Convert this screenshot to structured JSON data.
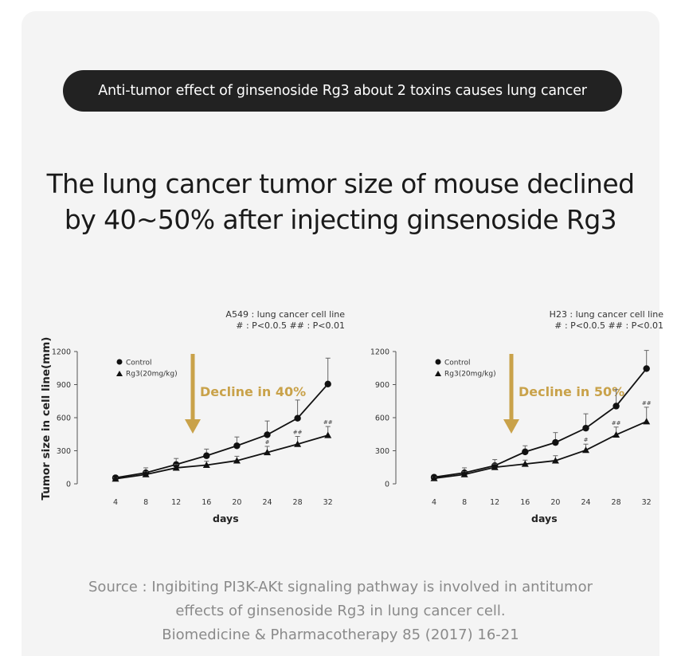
{
  "banner": "Anti-tumor effect of ginsenoside Rg3 about 2 toxins causes lung cancer",
  "headline": {
    "line1": "The lung cancer tumor size of mouse declined",
    "line2": "by 40~50% after injecting ginsenoside Rg3"
  },
  "source": {
    "line1": "Source : Ingibiting PI3K-AKt signaling pathway is involved in antitumor",
    "line2": "effects of ginsenoside Rg3 in lung cancer cell.",
    "line3": "Biomedicine & Pharmacotherapy 85 (2017) 16-21"
  },
  "colors": {
    "accent": "#c9a24a",
    "series": "#111111",
    "banner_bg": "#222222"
  },
  "chart_data": [
    {
      "type": "line",
      "note_line1": "A549 : lung cancer cell line",
      "note_line2": "# : P<0.0.5 ## : P<0.01",
      "callout": "Decline in 40%",
      "xlabel": "days",
      "ylabel": "Tumor size in  cell line(mm)",
      "x": [
        4,
        8,
        12,
        16,
        20,
        24,
        28,
        32
      ],
      "ylim": [
        0,
        1200
      ],
      "yticks": [
        0,
        300,
        600,
        900,
        1200
      ],
      "legend_position": "top-left",
      "series": [
        {
          "name": "Control",
          "marker": "circle",
          "values": [
            55,
            100,
            175,
            255,
            345,
            445,
            595,
            905
          ],
          "errors": [
            15,
            45,
            55,
            60,
            80,
            125,
            165,
            235
          ],
          "sig": [
            "",
            "",
            "",
            "",
            "",
            "",
            "",
            ""
          ]
        },
        {
          "name": "Rg3(20mg/kg)",
          "marker": "triangle",
          "values": [
            45,
            85,
            145,
            170,
            210,
            285,
            360,
            440
          ],
          "errors": [
            10,
            25,
            30,
            35,
            40,
            55,
            70,
            80
          ],
          "sig": [
            "",
            "",
            "",
            "",
            "",
            "#",
            "##",
            "##"
          ]
        }
      ]
    },
    {
      "type": "line",
      "note_line1": "H23 : lung cancer cell line",
      "note_line2": "# : P<0.0.5 ## : P<0.01",
      "callout": "Decline in 50%",
      "xlabel": "days",
      "ylabel": "",
      "x": [
        4,
        8,
        12,
        16,
        20,
        24,
        28,
        32
      ],
      "ylim": [
        0,
        1200
      ],
      "yticks": [
        0,
        300,
        600,
        900,
        1200
      ],
      "legend_position": "top-left",
      "series": [
        {
          "name": "Control",
          "marker": "circle",
          "values": [
            60,
            100,
            165,
            290,
            375,
            505,
            705,
            1045
          ],
          "errors": [
            15,
            45,
            55,
            55,
            90,
            130,
            150,
            165
          ],
          "sig": [
            "",
            "",
            "",
            "",
            "",
            "",
            "",
            ""
          ]
        },
        {
          "name": "Rg3(20mg/kg)",
          "marker": "triangle",
          "values": [
            50,
            85,
            150,
            180,
            210,
            305,
            445,
            565
          ],
          "errors": [
            10,
            25,
            30,
            35,
            45,
            55,
            70,
            130
          ],
          "sig": [
            "",
            "",
            "",
            "",
            "",
            "#",
            "##",
            "##"
          ]
        }
      ]
    }
  ]
}
